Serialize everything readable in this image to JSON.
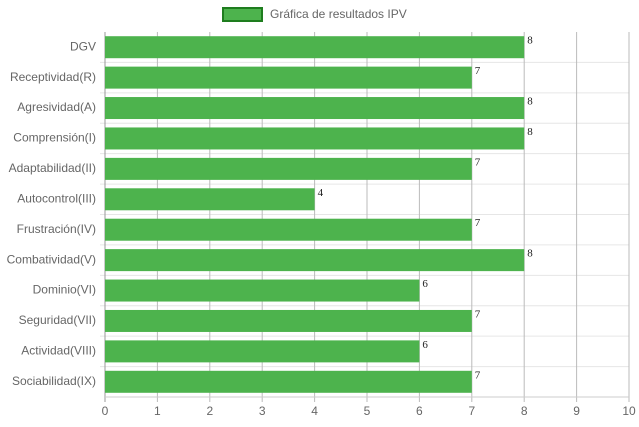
{
  "chart_data": {
    "type": "bar",
    "orientation": "horizontal",
    "legend": "top",
    "series": [
      {
        "name": "Gráfica de resultados IPV",
        "color": "#4db34d",
        "values": [
          8,
          7,
          8,
          8,
          7,
          4,
          7,
          8,
          6,
          7,
          6,
          7
        ]
      }
    ],
    "categories": [
      "DGV",
      "Receptividad(R)",
      "Agresividad(A)",
      "Comprensión(I)",
      "Adaptabilidad(II)",
      "Autocontrol(III)",
      "Frustración(IV)",
      "Combatividad(V)",
      "Dominio(VI)",
      "Seguridad(VII)",
      "Actividad(VIII)",
      "Sociabilidad(IX)"
    ],
    "xlim": [
      0,
      10
    ],
    "xticks": [
      0,
      1,
      2,
      3,
      4,
      5,
      6,
      7,
      8,
      9,
      10
    ],
    "grid": true
  }
}
